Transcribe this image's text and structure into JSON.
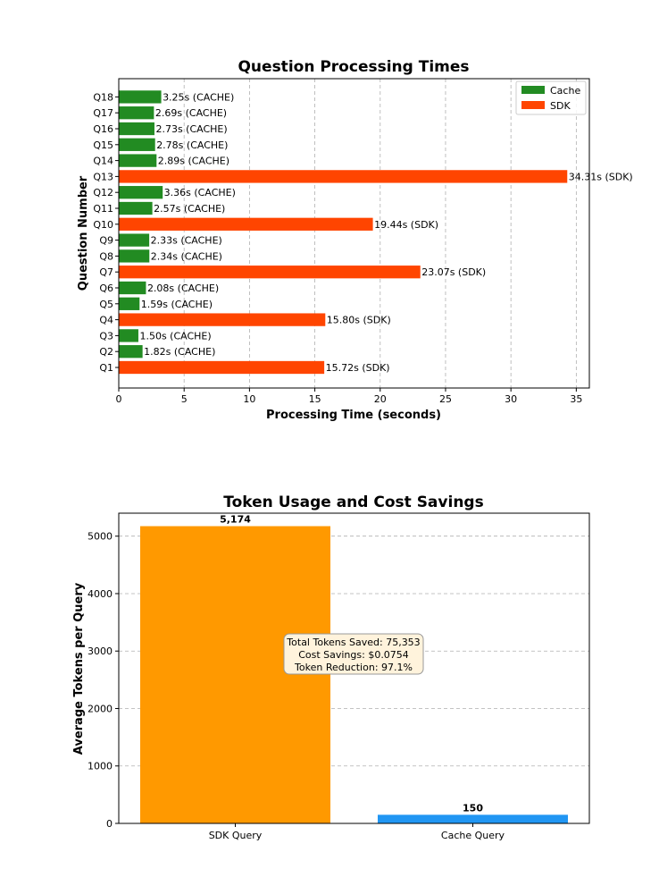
{
  "chart_data": [
    {
      "type": "bar",
      "orientation": "horizontal",
      "title": "Question Processing Times",
      "xlabel": "Processing Time (seconds)",
      "ylabel": "Question Number",
      "xlim": [
        0,
        36
      ],
      "xticks": [
        "0",
        "5",
        "10",
        "15",
        "20",
        "25",
        "30",
        "35"
      ],
      "grid": "x",
      "legend_position": "top-right",
      "legend": [
        {
          "name": "Cache",
          "color": "#228b22"
        },
        {
          "name": "SDK",
          "color": "#ff4500"
        }
      ],
      "categories": [
        "Q1",
        "Q2",
        "Q3",
        "Q4",
        "Q5",
        "Q6",
        "Q7",
        "Q8",
        "Q9",
        "Q10",
        "Q11",
        "Q12",
        "Q13",
        "Q14",
        "Q15",
        "Q16",
        "Q17",
        "Q18"
      ],
      "values": [
        15.72,
        1.82,
        1.5,
        15.8,
        1.59,
        2.08,
        23.07,
        2.34,
        2.33,
        19.44,
        2.57,
        3.36,
        34.31,
        2.89,
        2.78,
        2.73,
        2.69,
        3.25
      ],
      "source": [
        "SDK",
        "CACHE",
        "CACHE",
        "SDK",
        "CACHE",
        "CACHE",
        "SDK",
        "CACHE",
        "CACHE",
        "SDK",
        "CACHE",
        "CACHE",
        "SDK",
        "CACHE",
        "CACHE",
        "CACHE",
        "CACHE",
        "CACHE"
      ],
      "data_labels": [
        "15.72s (SDK)",
        "1.82s (CACHE)",
        "1.50s (CACHE)",
        "15.80s (SDK)",
        "1.59s (CACHE)",
        "2.08s (CACHE)",
        "23.07s (SDK)",
        "2.34s (CACHE)",
        "2.33s (CACHE)",
        "19.44s (SDK)",
        "2.57s (CACHE)",
        "3.36s (CACHE)",
        "34.31s (SDK)",
        "2.89s (CACHE)",
        "2.78s (CACHE)",
        "2.73s (CACHE)",
        "2.69s (CACHE)",
        "3.25s (CACHE)"
      ]
    },
    {
      "type": "bar",
      "title": "Token Usage and Cost Savings",
      "xlabel": "",
      "ylabel": "Average Tokens per Query",
      "ylim": [
        0,
        5400
      ],
      "yticks": [
        0,
        1000,
        2000,
        3000,
        4000,
        5000
      ],
      "grid": "y",
      "categories": [
        "SDK Query",
        "Cache Query"
      ],
      "values": [
        5174,
        150
      ],
      "data_labels": [
        "5,174",
        "150"
      ],
      "colors": [
        "#ff9900",
        "#2196f3"
      ],
      "annotation": [
        "Total Tokens Saved: 75,353",
        "Cost Savings: $0.0754",
        "Token Reduction: 97.1%"
      ]
    }
  ]
}
